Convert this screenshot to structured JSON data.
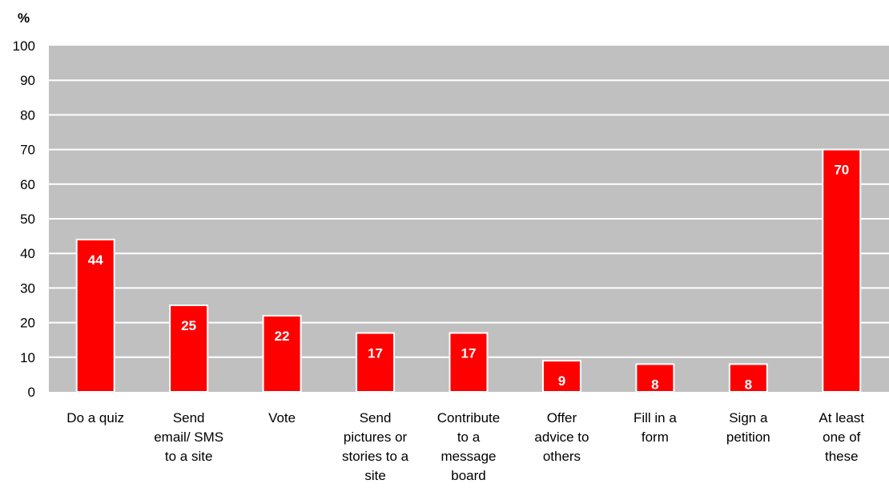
{
  "chart_data": {
    "type": "bar",
    "ylabel": "%",
    "ylim": [
      0,
      100
    ],
    "yticks": [
      "0",
      "10",
      "20",
      "30",
      "40",
      "50",
      "60",
      "70",
      "80",
      "90",
      "100"
    ],
    "grid": true,
    "legend": "none",
    "categories": [
      [
        "Do a quiz"
      ],
      [
        "Send",
        "email/ SMS",
        "to a site"
      ],
      [
        "Vote"
      ],
      [
        "Send",
        "pictures or",
        "stories to a",
        "site"
      ],
      [
        "Contribute",
        "to a",
        "message",
        "board"
      ],
      [
        "Offer",
        "advice to",
        "others"
      ],
      [
        "Fill in a",
        "form"
      ],
      [
        "Sign a",
        "petition"
      ],
      [
        "At least",
        "one of",
        "these"
      ]
    ],
    "values": [
      44,
      25,
      22,
      17,
      17,
      9,
      8,
      8,
      70
    ],
    "data_labels": [
      "44",
      "25",
      "22",
      "17",
      "17",
      "9",
      "8",
      "8",
      "70"
    ]
  },
  "colors": {
    "plot_background": "#c0c0c0",
    "gridline": "#ffffff",
    "bar_fill": "#ff0000",
    "bar_stroke": "#ffffff",
    "data_label": "#ffffff",
    "axis_text": "#000000"
  }
}
